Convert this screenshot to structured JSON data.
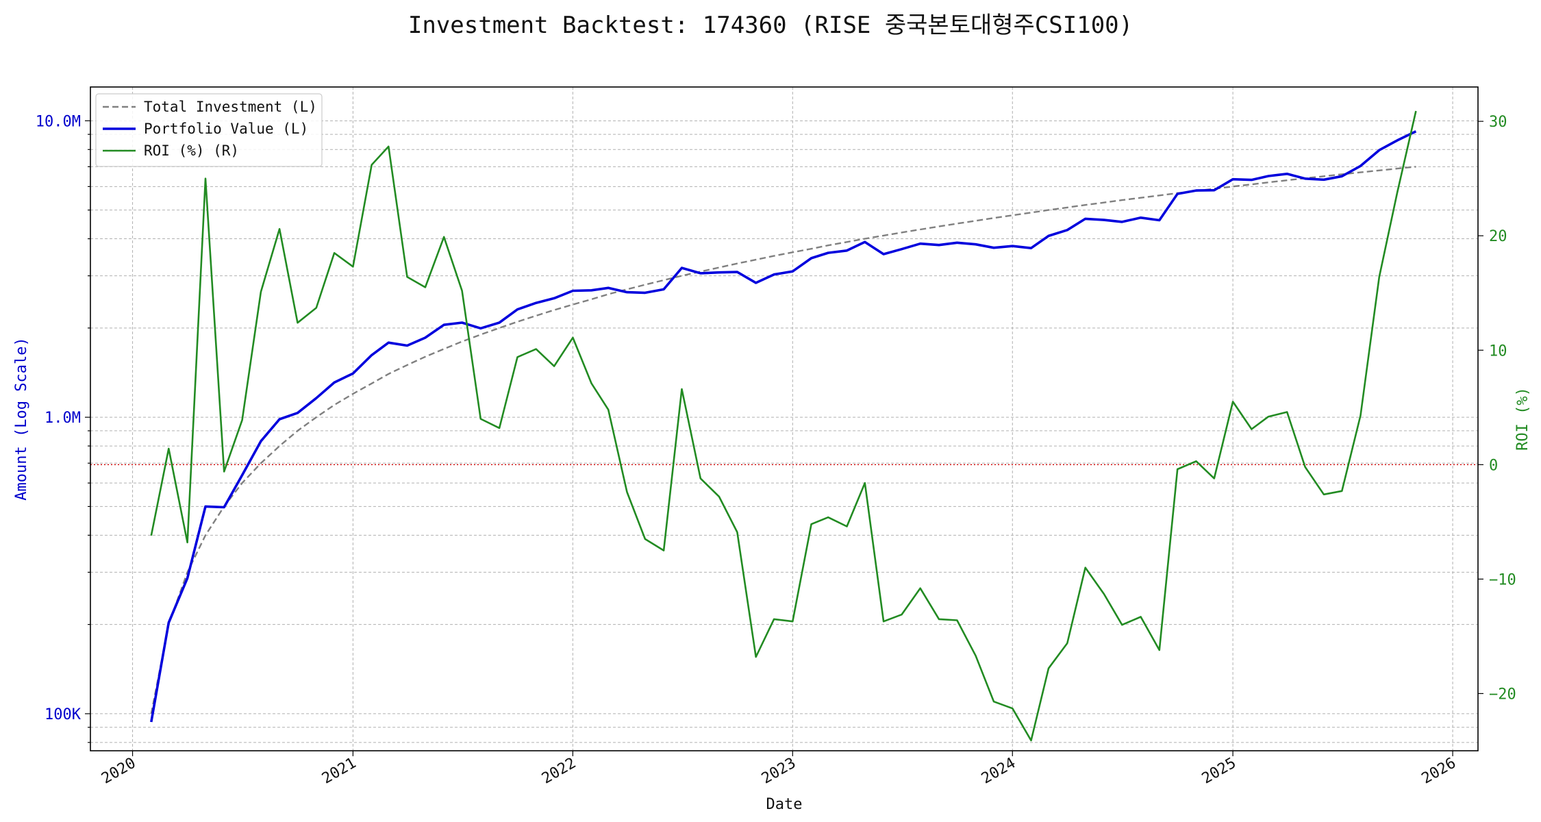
{
  "chart_data": {
    "type": "line",
    "title": "Investment Backtest: 174360 (RISE 중국본토대형주CSI100)",
    "xlabel": "Date",
    "ylabel_left": "Amount (Log Scale)",
    "ylabel_right": "ROI (%)",
    "left_scale": "log",
    "left_range": [
      75000,
      13000000
    ],
    "right_range": [
      -25,
      33
    ],
    "x_range": [
      "2019-10-23",
      "2026-02-12"
    ],
    "grid": true,
    "legend_position": "top-left",
    "x_ticks": [
      {
        "date": "2020-01-01",
        "label": "2020"
      },
      {
        "date": "2021-01-01",
        "label": "2021"
      },
      {
        "date": "2022-01-01",
        "label": "2022"
      },
      {
        "date": "2023-01-01",
        "label": "2023"
      },
      {
        "date": "2024-01-01",
        "label": "2024"
      },
      {
        "date": "2025-01-01",
        "label": "2025"
      },
      {
        "date": "2026-01-01",
        "label": "2026"
      }
    ],
    "left_ticks": [
      {
        "value": 100000,
        "label": "100K"
      },
      {
        "value": 1000000,
        "label": "1.0M"
      },
      {
        "value": 10000000,
        "label": "10.0M"
      }
    ],
    "right_ticks": [
      {
        "value": -20,
        "label": "−20"
      },
      {
        "value": -10,
        "label": "−10"
      },
      {
        "value": 0,
        "label": "0"
      },
      {
        "value": 10,
        "label": "10"
      },
      {
        "value": 20,
        "label": "20"
      },
      {
        "value": 30,
        "label": "30"
      }
    ],
    "dates": [
      "2020-02-01",
      "2020-03-01",
      "2020-04-01",
      "2020-05-01",
      "2020-06-01",
      "2020-07-01",
      "2020-08-01",
      "2020-09-01",
      "2020-10-01",
      "2020-11-01",
      "2020-12-01",
      "2021-01-01",
      "2021-02-01",
      "2021-03-01",
      "2021-04-01",
      "2021-05-01",
      "2021-06-01",
      "2021-07-01",
      "2021-08-01",
      "2021-09-01",
      "2021-10-01",
      "2021-11-01",
      "2021-12-01",
      "2022-01-01",
      "2022-02-01",
      "2022-03-01",
      "2022-04-01",
      "2022-05-01",
      "2022-06-01",
      "2022-07-01",
      "2022-08-01",
      "2022-09-01",
      "2022-10-01",
      "2022-11-01",
      "2022-12-01",
      "2023-01-01",
      "2023-02-01",
      "2023-03-01",
      "2023-04-01",
      "2023-05-01",
      "2023-06-01",
      "2023-07-01",
      "2023-08-01",
      "2023-09-01",
      "2023-10-01",
      "2023-11-01",
      "2023-12-01",
      "2024-01-01",
      "2024-02-01",
      "2024-03-01",
      "2024-04-01",
      "2024-05-01",
      "2024-06-01",
      "2024-07-01",
      "2024-08-01",
      "2024-09-01",
      "2024-10-01",
      "2024-11-01",
      "2024-12-01",
      "2025-01-01",
      "2025-02-01",
      "2025-03-01",
      "2025-04-01",
      "2025-05-01",
      "2025-06-01",
      "2025-07-01",
      "2025-08-01",
      "2025-09-01",
      "2025-10-01",
      "2025-11-01"
    ],
    "series": [
      {
        "name": "Total Investment (L)",
        "axis": "left",
        "color": "#808080",
        "style": "dashed",
        "values": [
          100000,
          200000,
          300000,
          400000,
          500000,
          600000,
          700000,
          800000,
          900000,
          1000000,
          1100000,
          1200000,
          1300000,
          1400000,
          1500000,
          1600000,
          1700000,
          1800000,
          1900000,
          2000000,
          2100000,
          2200000,
          2300000,
          2400000,
          2500000,
          2600000,
          2700000,
          2800000,
          2900000,
          3000000,
          3100000,
          3200000,
          3300000,
          3400000,
          3500000,
          3600000,
          3700000,
          3800000,
          3900000,
          4000000,
          4100000,
          4200000,
          4300000,
          4400000,
          4500000,
          4600000,
          4700000,
          4800000,
          4900000,
          5000000,
          5100000,
          5200000,
          5300000,
          5400000,
          5500000,
          5600000,
          5700000,
          5800000,
          5900000,
          6000000,
          6100000,
          6200000,
          6300000,
          6400000,
          6500000,
          6600000,
          6700000,
          6800000,
          6900000,
          7000000
        ]
      },
      {
        "name": "Portfolio Value (L)",
        "axis": "left",
        "color": "#0000dd",
        "style": "solid",
        "values": [
          93800,
          202800,
          286500,
          500000,
          497000,
          638000,
          830000,
          985000,
          1034000,
          1160000,
          1310000,
          1405000,
          1620000,
          1785000,
          1745000,
          1855000,
          2050000,
          2085000,
          1995000,
          2085000,
          2310000,
          2430000,
          2520000,
          2670000,
          2680000,
          2730000,
          2640000,
          2630000,
          2700000,
          3190000,
          3060000,
          3080000,
          3090000,
          2840000,
          3030000,
          3105000,
          3440000,
          3585000,
          3650000,
          3900000,
          3550000,
          3690000,
          3850000,
          3810000,
          3880000,
          3830000,
          3730000,
          3780000,
          3720000,
          4090000,
          4280000,
          4670000,
          4630000,
          4560000,
          4710000,
          4620000,
          5670000,
          5820000,
          5830000,
          6350000,
          6320000,
          6510000,
          6620000,
          6380000,
          6330000,
          6500000,
          7040000,
          7960000,
          8590000,
          9210000
        ]
      },
      {
        "name": "ROI (%) (R)",
        "axis": "right",
        "color": "#228B22",
        "style": "solid",
        "values": [
          -6.2,
          1.4,
          -6.8,
          25.0,
          -0.6,
          3.9,
          15.1,
          20.6,
          12.4,
          13.7,
          18.5,
          17.3,
          26.2,
          27.8,
          16.4,
          15.5,
          19.9,
          15.2,
          4.0,
          3.2,
          9.4,
          10.1,
          8.6,
          11.1,
          7.1,
          4.8,
          -2.4,
          -6.5,
          -7.5,
          6.6,
          -1.2,
          -2.8,
          -5.9,
          -16.8,
          -13.5,
          -13.7,
          -5.2,
          -4.6,
          -5.4,
          -1.6,
          -13.7,
          -13.1,
          -10.8,
          -13.5,
          -13.6,
          -16.7,
          -20.7,
          -21.3,
          -24.1,
          -17.8,
          -15.6,
          -9.0,
          -11.3,
          -14.0,
          -13.3,
          -16.2,
          -0.4,
          0.3,
          -1.2,
          5.5,
          3.1,
          4.2,
          4.6,
          -0.2,
          -2.6,
          -2.3,
          4.3,
          16.4,
          23.8,
          30.9
        ]
      }
    ],
    "reference_lines": [
      {
        "axis": "right",
        "value": 0,
        "color": "#cc0000",
        "style": "dotted"
      }
    ]
  }
}
